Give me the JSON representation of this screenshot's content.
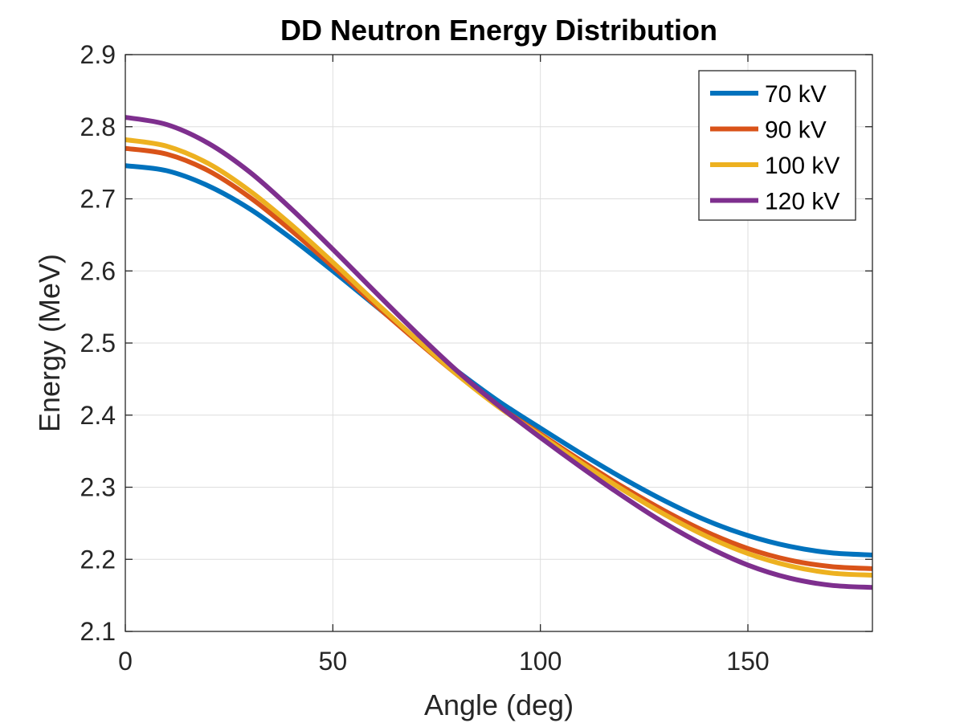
{
  "chart_data": {
    "type": "line",
    "title": "DD Neutron Energy Distribution",
    "xlabel": "Angle (deg)",
    "ylabel": "Energy (MeV)",
    "xlim": [
      0,
      180
    ],
    "ylim": [
      2.1,
      2.9
    ],
    "x_ticks": [
      0,
      50,
      100,
      150
    ],
    "y_ticks": [
      2.1,
      2.2,
      2.3,
      2.4,
      2.5,
      2.6,
      2.7,
      2.8,
      2.9
    ],
    "grid": true,
    "legend_position": "top-right",
    "x": [
      0,
      10,
      20,
      30,
      40,
      50,
      60,
      70,
      80,
      90,
      100,
      110,
      120,
      130,
      140,
      150,
      160,
      170,
      180
    ],
    "series": [
      {
        "name": "70 kV",
        "color": "#0072BD",
        "values": [
          2.746,
          2.739,
          2.718,
          2.686,
          2.645,
          2.6,
          2.553,
          2.506,
          2.461,
          2.419,
          2.382,
          2.346,
          2.312,
          2.281,
          2.254,
          2.233,
          2.218,
          2.209,
          2.206
        ]
      },
      {
        "name": "90 kV",
        "color": "#D95319",
        "values": [
          2.77,
          2.762,
          2.739,
          2.702,
          2.656,
          2.606,
          2.554,
          2.504,
          2.456,
          2.412,
          2.374,
          2.336,
          2.3,
          2.267,
          2.238,
          2.215,
          2.199,
          2.19,
          2.187
        ]
      },
      {
        "name": "100 kV",
        "color": "#EDB120",
        "values": [
          2.782,
          2.773,
          2.749,
          2.711,
          2.664,
          2.612,
          2.558,
          2.506,
          2.456,
          2.411,
          2.372,
          2.333,
          2.296,
          2.262,
          2.232,
          2.208,
          2.191,
          2.181,
          2.178
        ]
      },
      {
        "name": "120 kV",
        "color": "#7E2F8E",
        "values": [
          2.813,
          2.803,
          2.777,
          2.737,
          2.686,
          2.63,
          2.572,
          2.515,
          2.461,
          2.413,
          2.369,
          2.327,
          2.287,
          2.25,
          2.218,
          2.192,
          2.174,
          2.164,
          2.161
        ]
      }
    ]
  }
}
